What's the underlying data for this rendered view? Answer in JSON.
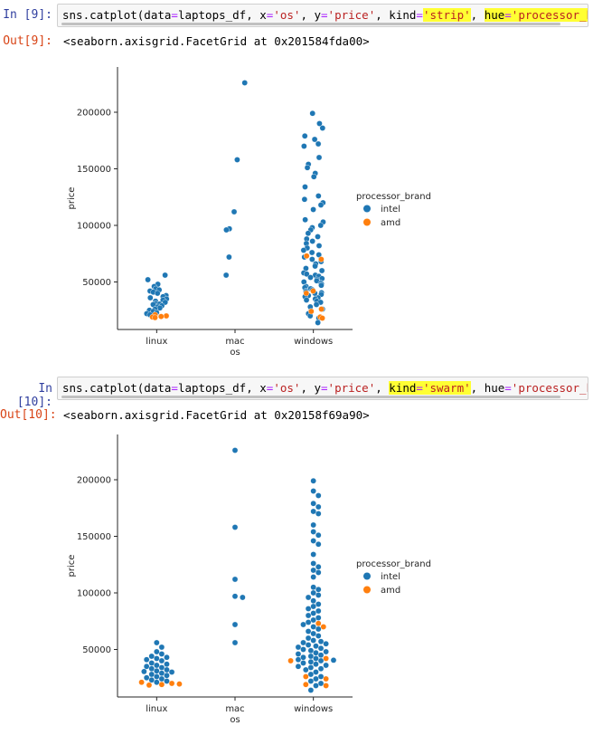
{
  "cells": [
    {
      "in_prompt": "In [9]:",
      "out_prompt": "Out[9]:",
      "code": {
        "part1": "sns.catplot(data",
        "eq1": "=",
        "part2": "laptops_df, x",
        "eq2": "=",
        "str_os": "'os'",
        "part3": ", y",
        "eq3": "=",
        "str_price": "'price'",
        "part4": ", ",
        "kind_kw": "kind",
        "eq4": "=",
        "kind_val": "'strip'",
        "part5": ", ",
        "hue_kw": "hue",
        "eq5": "=",
        "hue_val": "'processor_brand"
      },
      "output_text": "<seaborn.axisgrid.FacetGrid at 0x201584fda00>"
    },
    {
      "in_prompt": "In [10]:",
      "out_prompt": "Out[10]:",
      "code": {
        "part1": "sns.catplot(data",
        "eq1": "=",
        "part2": "laptops_df, x",
        "eq2": "=",
        "str_os": "'os'",
        "part3": ", y",
        "eq3": "=",
        "str_price": "'price'",
        "part4": ", ",
        "kind_kw": "kind",
        "eq4": "=",
        "kind_val": "'swarm'",
        "part5": ", ",
        "hue_kw": "hue",
        "eq5": "=",
        "hue_val": "'processor_brand"
      },
      "output_text": "<seaborn.axisgrid.FacetGrid at 0x20158f69a90>"
    }
  ],
  "chart_data": [
    {
      "type": "scatter",
      "kind": "strip",
      "categories": [
        "linux",
        "mac",
        "windows"
      ],
      "xlabel": "os",
      "ylabel": "price",
      "ylim": [
        8000,
        240000
      ],
      "yticks": [
        50000,
        100000,
        150000,
        200000
      ],
      "ytick_labels": [
        "50000",
        "100000",
        "150000",
        "200000"
      ],
      "legend": {
        "title": "processor_brand",
        "placement": "right"
      },
      "series": [
        {
          "name": "intel",
          "color": "#1f77b4",
          "values": {
            "linux": [
              56000,
              52000,
              48000,
              46000,
              44000,
              43000,
              42000,
              41000,
              40000,
              38000,
              37000,
              36000,
              35000,
              34000,
              33000,
              32000,
              31000,
              30500,
              30000,
              29000,
              28000,
              27000,
              26000,
              25000,
              24000,
              23000,
              22000,
              21000
            ],
            "mac": [
              226000,
              158000,
              112000,
              97000,
              96000,
              72000,
              56000
            ],
            "windows": [
              199000,
              190000,
              186000,
              179000,
              176000,
              172000,
              170000,
              160000,
              154000,
              151000,
              146000,
              143000,
              134000,
              126000,
              123000,
              120000,
              118000,
              114000,
              105000,
              103000,
              100000,
              98000,
              96000,
              93000,
              90000,
              88000,
              86000,
              84000,
              82000,
              80000,
              78000,
              76000,
              74000,
              72000,
              70000,
              68000,
              66000,
              64000,
              62000,
              60000,
              58000,
              57000,
              56000,
              55000,
              54000,
              53000,
              52000,
              51000,
              50000,
              49000,
              48000,
              47000,
              46000,
              45000,
              44000,
              43000,
              42000,
              41000,
              40500,
              40000,
              39000,
              38000,
              37000,
              36000,
              35000,
              34000,
              33000,
              32000,
              30000,
              28000,
              26000,
              24000,
              22000,
              20000,
              18000,
              14000
            ]
          }
        },
        {
          "name": "amd",
          "color": "#ff7f0e",
          "values": {
            "linux": [
              21000,
              20000,
              19500,
              19000,
              18500
            ],
            "mac": [],
            "windows": [
              73000,
              70000,
              42000,
              40000,
              26000,
              24000,
              19000,
              18000
            ]
          }
        }
      ]
    },
    {
      "type": "scatter",
      "kind": "swarm",
      "categories": [
        "linux",
        "mac",
        "windows"
      ],
      "xlabel": "os",
      "ylabel": "price",
      "ylim": [
        8000,
        240000
      ],
      "yticks": [
        50000,
        100000,
        150000,
        200000
      ],
      "ytick_labels": [
        "50000",
        "100000",
        "150000",
        "200000"
      ],
      "legend": {
        "title": "processor_brand",
        "placement": "right"
      },
      "series": [
        {
          "name": "intel",
          "color": "#1f77b4",
          "values": {
            "linux": [
              56000,
              52000,
              48000,
              46000,
              44000,
              43000,
              42000,
              41000,
              40000,
              38000,
              37000,
              36000,
              35000,
              34000,
              33000,
              32000,
              31000,
              30500,
              30000,
              29000,
              28000,
              27000,
              26000,
              25000,
              24000,
              23000,
              22000,
              21000
            ],
            "mac": [
              226000,
              158000,
              112000,
              97000,
              96000,
              72000,
              56000
            ],
            "windows": [
              199000,
              190000,
              186000,
              179000,
              176000,
              172000,
              170000,
              160000,
              154000,
              151000,
              146000,
              143000,
              134000,
              126000,
              123000,
              120000,
              118000,
              114000,
              105000,
              103000,
              100000,
              98000,
              96000,
              93000,
              90000,
              88000,
              86000,
              84000,
              82000,
              80000,
              78000,
              76000,
              74000,
              72000,
              70000,
              68000,
              66000,
              64000,
              62000,
              60000,
              58000,
              57000,
              56000,
              55000,
              54000,
              53000,
              52000,
              51000,
              50000,
              49000,
              48000,
              47000,
              46000,
              45000,
              44000,
              43000,
              42000,
              41000,
              40500,
              40000,
              39000,
              38000,
              37000,
              36000,
              35000,
              34000,
              33000,
              32000,
              30000,
              28000,
              26000,
              24000,
              22000,
              20000,
              18000,
              14000
            ]
          }
        },
        {
          "name": "amd",
          "color": "#ff7f0e",
          "values": {
            "linux": [
              21000,
              20000,
              19500,
              19000,
              18500
            ],
            "mac": [],
            "windows": [
              73000,
              70000,
              42000,
              40000,
              26000,
              24000,
              19000,
              18000
            ]
          }
        }
      ]
    }
  ]
}
